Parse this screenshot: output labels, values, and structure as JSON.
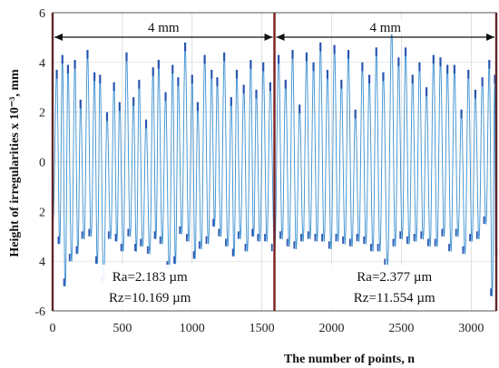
{
  "chart_data": {
    "type": "line",
    "xlabel": "The number of points, n",
    "ylabel": "Height of irregularities x 10⁻³, mm",
    "xlim": [
      0,
      3180
    ],
    "ylim": [
      -6,
      6
    ],
    "x_ticks": [
      0,
      500,
      1000,
      1500,
      2000,
      2500,
      3000
    ],
    "y_ticks": [
      {
        "value": 6,
        "label": "6"
      },
      {
        "value": 4,
        "label": "4"
      },
      {
        "value": 2,
        "label": "2"
      },
      {
        "value": 0,
        "label": "0"
      },
      {
        "value": -2,
        "label": "2"
      },
      {
        "value": -4,
        "label": "4"
      },
      {
        "value": -6,
        "label": "-6"
      }
    ],
    "grid": true,
    "line_color": "#3a8fd0",
    "marker_color": "#2a55b0",
    "divider_color": "#7a1f1f",
    "dividers": [
      0,
      1590,
      3180
    ],
    "spans": [
      {
        "from": 0,
        "to": 1590,
        "label": "4 mm"
      },
      {
        "from": 1590,
        "to": 3180,
        "label": "4 mm"
      }
    ],
    "annotations": [
      {
        "lines": [
          "Ra=2.183 µm",
          "Rz=10.169 µm"
        ]
      },
      {
        "lines": [
          "Ra=2.377 µm",
          "Rz=11.554 µm"
        ]
      }
    ],
    "series": [
      {
        "peaks": [
          [
            30,
            3.7,
            -3.3
          ],
          [
            70,
            4.3,
            -5.0
          ],
          [
            110,
            3.9,
            -4.0
          ],
          [
            160,
            4.1,
            -3.7
          ],
          [
            200,
            2.5,
            -3.1
          ],
          [
            250,
            4.5,
            -3.0
          ],
          [
            300,
            3.6,
            -4.1
          ],
          [
            340,
            3.5,
            -4.9
          ],
          [
            390,
            2.0,
            -3.1
          ],
          [
            440,
            3.2,
            -3.2
          ],
          [
            480,
            2.4,
            -3.6
          ],
          [
            530,
            4.4,
            -3.0
          ],
          [
            580,
            2.6,
            -3.6
          ],
          [
            620,
            3.3,
            -3.4
          ],
          [
            670,
            1.7,
            -3.7
          ],
          [
            720,
            3.8,
            -3.1
          ],
          [
            760,
            4.1,
            -3.3
          ],
          [
            810,
            2.8,
            -4.3
          ],
          [
            860,
            3.9,
            -4.1
          ],
          [
            900,
            3.4,
            -2.9
          ],
          [
            950,
            4.8,
            -3.2
          ],
          [
            1000,
            3.5,
            -3.9
          ],
          [
            1040,
            2.4,
            -3.5
          ],
          [
            1090,
            4.3,
            -3.3
          ],
          [
            1140,
            3.7,
            -2.6
          ],
          [
            1180,
            3.4,
            -3.0
          ],
          [
            1230,
            4.4,
            -3.4
          ],
          [
            1280,
            2.6,
            -3.8
          ],
          [
            1320,
            3.7,
            -3.1
          ],
          [
            1370,
            3.1,
            -3.6
          ],
          [
            1420,
            4.1,
            -3.0
          ],
          [
            1460,
            2.9,
            -3.2
          ],
          [
            1510,
            4.0,
            -3.2
          ],
          [
            1560,
            3.2,
            -3.6
          ],
          [
            1620,
            4.3,
            -3.1
          ],
          [
            1670,
            3.3,
            -3.4
          ],
          [
            1720,
            4.5,
            -3.5
          ],
          [
            1770,
            2.3,
            -3.2
          ],
          [
            1820,
            4.4,
            -3.1
          ],
          [
            1870,
            4.0,
            -3.2
          ],
          [
            1920,
            4.8,
            -3.2
          ],
          [
            1970,
            3.7,
            -3.5
          ],
          [
            2020,
            4.7,
            -3.2
          ],
          [
            2070,
            3.3,
            -3.3
          ],
          [
            2120,
            4.5,
            -3.4
          ],
          [
            2170,
            2.1,
            -3.2
          ],
          [
            2220,
            4.0,
            -3.3
          ],
          [
            2270,
            3.5,
            -3.6
          ],
          [
            2320,
            4.6,
            -3.6
          ],
          [
            2370,
            3.6,
            -4.2
          ],
          [
            2430,
            5.5,
            -3.4
          ],
          [
            2480,
            4.2,
            -3.1
          ],
          [
            2530,
            4.6,
            -3.3
          ],
          [
            2580,
            3.5,
            -3.2
          ],
          [
            2630,
            4.0,
            -3.1
          ],
          [
            2680,
            3.0,
            -3.4
          ],
          [
            2730,
            4.3,
            -3.4
          ],
          [
            2780,
            4.2,
            -3.0
          ],
          [
            2830,
            3.9,
            -3.6
          ],
          [
            2880,
            3.9,
            -3.0
          ],
          [
            2930,
            2.1,
            -3.7
          ],
          [
            2980,
            3.7,
            -3.2
          ],
          [
            3030,
            2.9,
            -3.1
          ],
          [
            3080,
            3.4,
            -2.5
          ],
          [
            3130,
            4.1,
            -5.4
          ],
          [
            3170,
            3.5,
            -3.8
          ]
        ]
      }
    ]
  }
}
